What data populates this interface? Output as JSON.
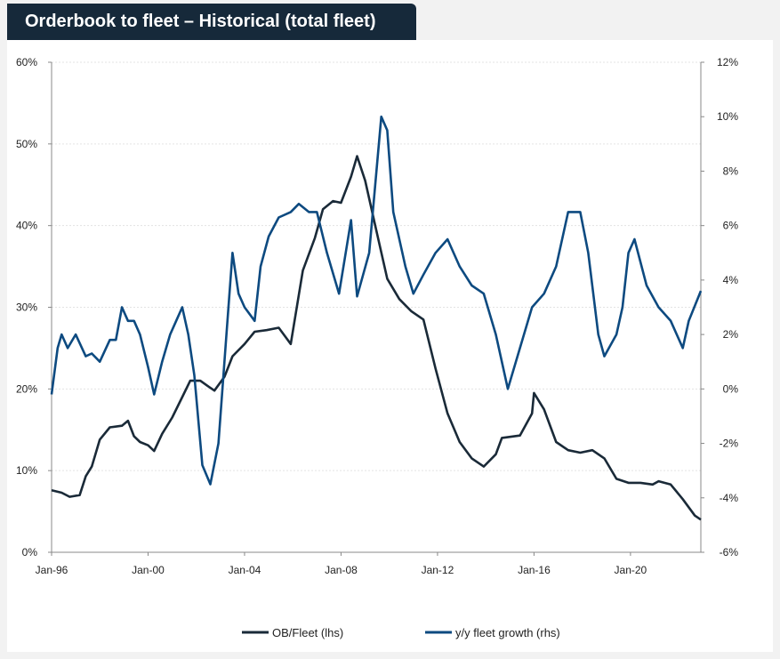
{
  "chart_data": {
    "type": "line",
    "title": "Orderbook to fleet – Historical (total fleet)",
    "x_range": [
      "1996-01",
      "2022-12"
    ],
    "x_ticks": [
      "Jan-96",
      "Jan-00",
      "Jan-04",
      "Jan-08",
      "Jan-12",
      "Jan-16",
      "Jan-20"
    ],
    "y_left": {
      "ylim": [
        0,
        60
      ],
      "ticks": [
        "0%",
        "10%",
        "20%",
        "30%",
        "40%",
        "50%",
        "60%"
      ]
    },
    "y_right": {
      "ylim": [
        -6,
        12
      ],
      "ticks": [
        "-6%",
        "-4%",
        "-2%",
        "0%",
        "2%",
        "4%",
        "6%",
        "8%",
        "10%",
        "12%"
      ]
    },
    "grid": true,
    "legend_position": "bottom",
    "series": [
      {
        "name": "OB/Fleet (lhs)",
        "axis": "left",
        "color": "#1a2a38",
        "points": [
          [
            "1996-01",
            7.6
          ],
          [
            "1996-06",
            7.3
          ],
          [
            "1996-10",
            6.8
          ],
          [
            "1997-03",
            7.0
          ],
          [
            "1997-06",
            9.3
          ],
          [
            "1997-09",
            10.5
          ],
          [
            "1998-01",
            13.8
          ],
          [
            "1998-06",
            15.3
          ],
          [
            "1998-12",
            15.5
          ],
          [
            "1999-03",
            16.1
          ],
          [
            "1999-06",
            14.2
          ],
          [
            "1999-09",
            13.5
          ],
          [
            "2000-01",
            13.1
          ],
          [
            "2000-04",
            12.4
          ],
          [
            "2000-08",
            14.5
          ],
          [
            "2001-01",
            16.5
          ],
          [
            "2001-06",
            19.0
          ],
          [
            "2001-10",
            21.0
          ],
          [
            "2002-03",
            21.0
          ],
          [
            "2002-07",
            20.3
          ],
          [
            "2002-10",
            19.8
          ],
          [
            "2003-03",
            21.5
          ],
          [
            "2003-07",
            24.0
          ],
          [
            "2004-01",
            25.5
          ],
          [
            "2004-06",
            27.0
          ],
          [
            "2004-12",
            27.2
          ],
          [
            "2005-06",
            27.5
          ],
          [
            "2005-12",
            25.5
          ],
          [
            "2006-06",
            34.5
          ],
          [
            "2006-12",
            38.5
          ],
          [
            "2007-04",
            42.0
          ],
          [
            "2007-09",
            43.0
          ],
          [
            "2008-01",
            42.8
          ],
          [
            "2008-06",
            46.0
          ],
          [
            "2008-09",
            48.5
          ],
          [
            "2009-01",
            45.5
          ],
          [
            "2009-06",
            40.0
          ],
          [
            "2009-12",
            33.5
          ],
          [
            "2010-06",
            31.0
          ],
          [
            "2010-12",
            29.5
          ],
          [
            "2011-06",
            28.5
          ],
          [
            "2011-12",
            22.5
          ],
          [
            "2012-06",
            17.0
          ],
          [
            "2012-12",
            13.5
          ],
          [
            "2013-06",
            11.5
          ],
          [
            "2013-12",
            10.5
          ],
          [
            "2014-06",
            12.0
          ],
          [
            "2014-09",
            14.0
          ],
          [
            "2015-06",
            14.3
          ],
          [
            "2015-12",
            17.0
          ],
          [
            "2016-01",
            19.5
          ],
          [
            "2016-06",
            17.5
          ],
          [
            "2016-12",
            13.5
          ],
          [
            "2017-06",
            12.5
          ],
          [
            "2017-12",
            12.2
          ],
          [
            "2018-06",
            12.5
          ],
          [
            "2018-12",
            11.5
          ],
          [
            "2019-06",
            9.0
          ],
          [
            "2019-12",
            8.5
          ],
          [
            "2020-06",
            8.5
          ],
          [
            "2020-12",
            8.3
          ],
          [
            "2021-03",
            8.7
          ],
          [
            "2021-09",
            8.3
          ],
          [
            "2022-03",
            6.5
          ],
          [
            "2022-09",
            4.5
          ],
          [
            "2022-12",
            4.0
          ]
        ]
      },
      {
        "name": "y/y fleet growth (rhs)",
        "axis": "right",
        "color": "#0d4a80",
        "points": [
          [
            "1996-01",
            -0.2
          ],
          [
            "1996-04",
            1.5
          ],
          [
            "1996-06",
            2.0
          ],
          [
            "1996-09",
            1.5
          ],
          [
            "1997-01",
            2.0
          ],
          [
            "1997-06",
            1.2
          ],
          [
            "1997-09",
            1.3
          ],
          [
            "1998-01",
            1.0
          ],
          [
            "1998-06",
            1.8
          ],
          [
            "1998-09",
            1.8
          ],
          [
            "1998-12",
            3.0
          ],
          [
            "1999-03",
            2.5
          ],
          [
            "1999-06",
            2.5
          ],
          [
            "1999-09",
            2.0
          ],
          [
            "2000-01",
            0.8
          ],
          [
            "2000-04",
            -0.2
          ],
          [
            "2000-08",
            1.0
          ],
          [
            "2000-12",
            2.0
          ],
          [
            "2001-03",
            2.5
          ],
          [
            "2001-06",
            3.0
          ],
          [
            "2001-09",
            2.0
          ],
          [
            "2001-12",
            0.5
          ],
          [
            "2002-04",
            -2.8
          ],
          [
            "2002-08",
            -3.5
          ],
          [
            "2002-12",
            -2.0
          ],
          [
            "2003-04",
            2.0
          ],
          [
            "2003-07",
            5.0
          ],
          [
            "2003-10",
            3.5
          ],
          [
            "2004-01",
            3.0
          ],
          [
            "2004-06",
            2.5
          ],
          [
            "2004-09",
            4.5
          ],
          [
            "2005-01",
            5.6
          ],
          [
            "2005-06",
            6.3
          ],
          [
            "2005-12",
            6.5
          ],
          [
            "2006-04",
            6.8
          ],
          [
            "2006-09",
            6.5
          ],
          [
            "2007-01",
            6.5
          ],
          [
            "2007-06",
            5.0
          ],
          [
            "2007-12",
            3.5
          ],
          [
            "2008-06",
            6.2
          ],
          [
            "2008-09",
            3.4
          ],
          [
            "2009-03",
            5.0
          ],
          [
            "2009-06",
            7.5
          ],
          [
            "2009-09",
            10.0
          ],
          [
            "2009-12",
            9.5
          ],
          [
            "2010-03",
            6.5
          ],
          [
            "2010-09",
            4.5
          ],
          [
            "2011-01",
            3.5
          ],
          [
            "2011-06",
            4.2
          ],
          [
            "2011-12",
            5.0
          ],
          [
            "2012-06",
            5.5
          ],
          [
            "2012-12",
            4.5
          ],
          [
            "2013-06",
            3.8
          ],
          [
            "2013-12",
            3.5
          ],
          [
            "2014-06",
            2.0
          ],
          [
            "2014-12",
            0.0
          ],
          [
            "2015-06",
            1.5
          ],
          [
            "2015-12",
            3.0
          ],
          [
            "2016-06",
            3.5
          ],
          [
            "2016-12",
            4.5
          ],
          [
            "2017-06",
            6.5
          ],
          [
            "2017-12",
            6.5
          ],
          [
            "2018-04",
            5.0
          ],
          [
            "2018-09",
            2.0
          ],
          [
            "2018-12",
            1.2
          ],
          [
            "2019-06",
            2.0
          ],
          [
            "2019-09",
            3.0
          ],
          [
            "2019-12",
            5.0
          ],
          [
            "2020-03",
            5.5
          ],
          [
            "2020-09",
            3.8
          ],
          [
            "2021-03",
            3.0
          ],
          [
            "2021-09",
            2.5
          ],
          [
            "2022-03",
            1.5
          ],
          [
            "2022-06",
            2.5
          ],
          [
            "2022-12",
            3.6
          ]
        ]
      }
    ]
  }
}
